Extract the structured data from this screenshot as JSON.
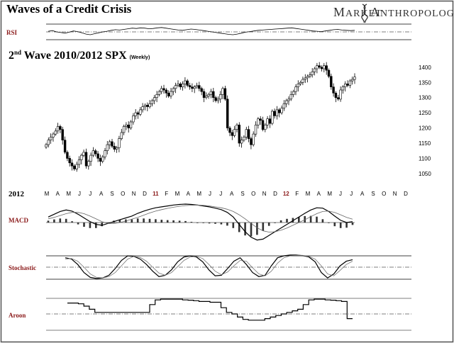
{
  "header": {
    "title": "Waves of a Credit Crisis",
    "brand_left": "Market",
    "brand_right": "Anthropology"
  },
  "chart_data": [
    {
      "type": "line",
      "name_label": "RSI",
      "values": [
        52,
        54,
        50,
        48,
        46,
        49,
        53,
        51,
        47,
        43,
        41,
        44,
        47,
        50,
        52,
        55,
        57,
        56,
        58,
        60,
        62,
        61,
        63,
        62,
        60,
        61,
        63,
        64,
        62,
        60,
        58,
        56,
        55,
        57,
        59,
        58,
        56,
        54,
        52,
        50,
        48,
        46,
        44,
        42,
        41,
        43,
        46,
        49,
        51,
        53,
        55,
        56,
        57,
        58,
        59,
        60,
        61,
        62,
        63,
        61,
        59,
        57,
        55,
        53,
        52,
        51,
        53,
        55,
        57,
        58,
        56,
        55,
        54,
        55
      ]
    },
    {
      "type": "candlestick",
      "subtitle_prefix": "2",
      "subtitle_sup": "nd",
      "subtitle_main": " Wave 2010/2012  SPX",
      "subtitle_small": "(Weekly)",
      "ylim": [
        1010,
        1430
      ],
      "y_ticks": [
        "1400",
        "1350",
        "1300",
        "1250",
        "1200",
        "1150",
        "1100",
        "1050"
      ],
      "closes": [
        1145,
        1160,
        1170,
        1180,
        1190,
        1205,
        1195,
        1160,
        1120,
        1100,
        1085,
        1075,
        1065,
        1080,
        1095,
        1110,
        1120,
        1075,
        1090,
        1110,
        1125,
        1115,
        1100,
        1090,
        1105,
        1125,
        1145,
        1155,
        1140,
        1130,
        1135,
        1165,
        1185,
        1205,
        1210,
        1200,
        1220,
        1240,
        1250,
        1245,
        1260,
        1270,
        1275,
        1270,
        1280,
        1290,
        1300,
        1310,
        1320,
        1330,
        1325,
        1315,
        1305,
        1320,
        1330,
        1340,
        1345,
        1335,
        1345,
        1355,
        1340,
        1335,
        1330,
        1335,
        1340,
        1330,
        1320,
        1300,
        1305,
        1310,
        1320,
        1300,
        1290,
        1295,
        1310,
        1330,
        1295,
        1200,
        1185,
        1175,
        1195,
        1210,
        1150,
        1160,
        1170,
        1195,
        1165,
        1145,
        1180,
        1210,
        1230,
        1225,
        1195,
        1210,
        1230,
        1215,
        1255,
        1240,
        1260,
        1250,
        1265,
        1280,
        1290,
        1295,
        1310,
        1320,
        1335,
        1345,
        1350,
        1360,
        1365,
        1370,
        1375,
        1385,
        1395,
        1405,
        1400,
        1395,
        1405,
        1390,
        1370,
        1335,
        1315,
        1300,
        1295,
        1325,
        1335,
        1345,
        1340,
        1355,
        1360,
        1368
      ]
    },
    {
      "type": "axis",
      "year_label": "2012",
      "months": [
        "M",
        "A",
        "M",
        "J",
        "J",
        "A",
        "S",
        "O",
        "N",
        "D",
        "11",
        "F",
        "M",
        "A",
        "M",
        "J",
        "J",
        "A",
        "S",
        "O",
        "N",
        "D",
        "12",
        "F",
        "M",
        "A",
        "M",
        "J",
        "J",
        "A",
        "S",
        "O",
        "N",
        "D"
      ]
    },
    {
      "type": "line",
      "name_label": "MACD",
      "macd": [
        0.3,
        0.45,
        0.6,
        0.68,
        0.62,
        0.45,
        0.25,
        0.05,
        -0.1,
        -0.15,
        -0.05,
        0.05,
        0.15,
        0.25,
        0.35,
        0.5,
        0.62,
        0.72,
        0.8,
        0.85,
        0.9,
        0.95,
        0.98,
        1.0,
        0.98,
        0.95,
        0.9,
        0.85,
        0.78,
        0.7,
        0.55,
        0.3,
        -0.1,
        -0.5,
        -0.8,
        -0.95,
        -0.9,
        -0.7,
        -0.5,
        -0.3,
        -0.1,
        0.1,
        0.3,
        0.5,
        0.68,
        0.8,
        0.78,
        0.6,
        0.35,
        0.12,
        0.0,
        0.05
      ],
      "signal": [
        0.2,
        0.28,
        0.38,
        0.48,
        0.55,
        0.55,
        0.48,
        0.35,
        0.2,
        0.05,
        -0.05,
        -0.05,
        0.0,
        0.08,
        0.18,
        0.28,
        0.4,
        0.52,
        0.62,
        0.7,
        0.77,
        0.83,
        0.88,
        0.92,
        0.94,
        0.95,
        0.93,
        0.9,
        0.85,
        0.8,
        0.72,
        0.6,
        0.42,
        0.2,
        -0.05,
        -0.28,
        -0.45,
        -0.52,
        -0.5,
        -0.42,
        -0.3,
        -0.15,
        0.0,
        0.15,
        0.32,
        0.48,
        0.6,
        0.62,
        0.55,
        0.42,
        0.28,
        0.18
      ]
    },
    {
      "type": "line",
      "name_label": "Stochastic",
      "k": [
        85,
        80,
        60,
        30,
        12,
        8,
        10,
        20,
        45,
        75,
        92,
        90,
        80,
        60,
        35,
        15,
        20,
        40,
        70,
        88,
        92,
        88,
        70,
        40,
        18,
        20,
        45,
        72,
        85,
        60,
        30,
        15,
        20,
        55,
        85,
        92,
        95,
        95,
        93,
        88,
        70,
        30,
        10,
        25,
        55,
        72,
        78
      ],
      "d": [
        80,
        82,
        72,
        50,
        25,
        12,
        10,
        15,
        30,
        55,
        80,
        90,
        86,
        72,
        50,
        28,
        20,
        30,
        52,
        75,
        88,
        90,
        82,
        60,
        35,
        22,
        32,
        55,
        75,
        72,
        48,
        25,
        18,
        35,
        65,
        85,
        92,
        94,
        94,
        90,
        80,
        55,
        25,
        18,
        38,
        60,
        72
      ]
    },
    {
      "type": "line",
      "name_label": "Aroon",
      "values": [
        70,
        70,
        65,
        50,
        30,
        10,
        10,
        10,
        10,
        10,
        10,
        10,
        10,
        10,
        10,
        60,
        90,
        95,
        95,
        95,
        95,
        90,
        88,
        85,
        80,
        80,
        75,
        75,
        40,
        10,
        0,
        -20,
        -35,
        -40,
        -40,
        -40,
        -30,
        -20,
        -10,
        0,
        10,
        20,
        30,
        60,
        90,
        95,
        95,
        90,
        88,
        85,
        80,
        -30,
        -30
      ]
    }
  ]
}
